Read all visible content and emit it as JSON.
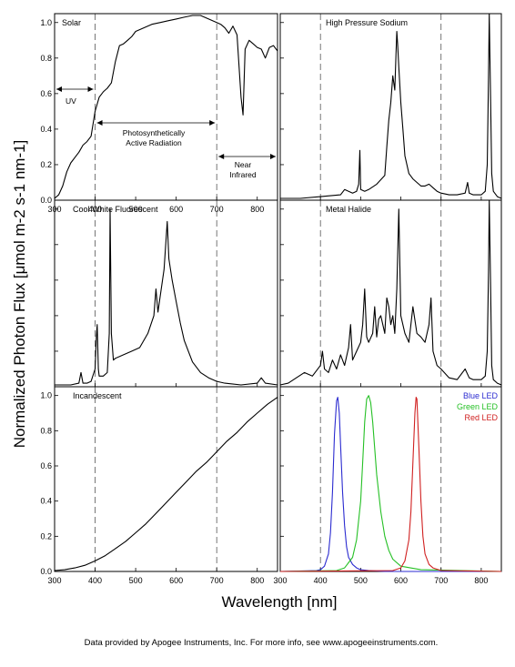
{
  "figure": {
    "xlabel": "Wavelength [nm]",
    "ylabel": "Normalized Photon Flux [μmol m-2 s-1 nm-1]",
    "credit": "Data provided by Apogee Instruments, Inc.  For more info, see www.apogeeinstruments.com."
  },
  "annotations": {
    "uv": "UV",
    "par_line1": "Photosynthetically",
    "par_line2": "Active Radiation",
    "nir_line1": "Near",
    "nir_line2": "Infrared"
  },
  "chart_data": [
    {
      "type": "line",
      "title": "Solar",
      "xlim": [
        300,
        850
      ],
      "ylim": [
        0,
        1.05
      ],
      "xticks": [
        "300",
        "400",
        "500",
        "600",
        "700",
        "800"
      ],
      "yticks": [
        "0.0",
        "0.2",
        "0.4",
        "0.6",
        "0.8",
        "1.0"
      ],
      "reference_lines_x": [
        400,
        700
      ],
      "series": [
        {
          "color": "#000000",
          "x": [
            300,
            310,
            320,
            330,
            340,
            350,
            360,
            370,
            380,
            390,
            400,
            410,
            420,
            430,
            440,
            450,
            460,
            470,
            480,
            490,
            500,
            520,
            540,
            560,
            580,
            600,
            620,
            640,
            660,
            680,
            700,
            710,
            720,
            730,
            740,
            750,
            760,
            765,
            770,
            780,
            790,
            800,
            810,
            820,
            830,
            840,
            850
          ],
          "y": [
            0.01,
            0.03,
            0.08,
            0.16,
            0.21,
            0.24,
            0.27,
            0.31,
            0.33,
            0.36,
            0.5,
            0.58,
            0.61,
            0.63,
            0.66,
            0.78,
            0.87,
            0.88,
            0.9,
            0.92,
            0.95,
            0.97,
            0.99,
            1.0,
            1.01,
            1.02,
            1.03,
            1.04,
            1.04,
            1.02,
            1.0,
            0.99,
            0.97,
            0.94,
            0.98,
            0.93,
            0.58,
            0.48,
            0.85,
            0.9,
            0.88,
            0.86,
            0.85,
            0.8,
            0.86,
            0.87,
            0.84
          ]
        }
      ]
    },
    {
      "type": "line",
      "title": "High Pressure Sodium",
      "xlim": [
        300,
        850
      ],
      "ylim": [
        0,
        1.05
      ],
      "xticks": [],
      "yticks": [],
      "reference_lines_x": [
        400,
        700
      ],
      "series": [
        {
          "color": "#000000",
          "x": [
            300,
            350,
            400,
            450,
            460,
            470,
            480,
            490,
            495,
            498,
            500,
            510,
            520,
            540,
            560,
            565,
            570,
            575,
            580,
            585,
            588,
            590,
            592,
            595,
            600,
            605,
            610,
            620,
            630,
            640,
            650,
            660,
            670,
            680,
            690,
            700,
            720,
            740,
            760,
            766,
            770,
            780,
            800,
            810,
            815,
            818,
            820,
            823,
            826,
            830,
            840,
            850
          ],
          "y": [
            0.01,
            0.01,
            0.02,
            0.03,
            0.06,
            0.05,
            0.04,
            0.05,
            0.09,
            0.28,
            0.06,
            0.05,
            0.06,
            0.09,
            0.14,
            0.3,
            0.45,
            0.55,
            0.7,
            0.62,
            0.82,
            0.95,
            0.88,
            0.75,
            0.55,
            0.4,
            0.25,
            0.15,
            0.12,
            0.1,
            0.08,
            0.08,
            0.09,
            0.07,
            0.05,
            0.04,
            0.03,
            0.03,
            0.04,
            0.1,
            0.04,
            0.03,
            0.03,
            0.05,
            0.2,
            0.7,
            1.05,
            0.6,
            0.15,
            0.05,
            0.02,
            0.01
          ]
        }
      ]
    },
    {
      "type": "line",
      "title": "Cool White Fluorescent",
      "xlim": [
        300,
        850
      ],
      "ylim": [
        0,
        1.05
      ],
      "xticks": [],
      "yticks": [],
      "reference_lines_x": [
        400,
        700
      ],
      "series": [
        {
          "color": "#000000",
          "x": [
            300,
            340,
            360,
            365,
            370,
            380,
            390,
            400,
            403,
            405,
            408,
            410,
            420,
            430,
            435,
            437,
            440,
            445,
            450,
            470,
            490,
            510,
            530,
            545,
            550,
            555,
            560,
            570,
            578,
            582,
            590,
            600,
            610,
            620,
            640,
            660,
            680,
            700,
            720,
            760,
            800,
            810,
            820,
            850
          ],
          "y": [
            0.01,
            0.01,
            0.02,
            0.08,
            0.02,
            0.02,
            0.03,
            0.1,
            0.28,
            0.35,
            0.1,
            0.06,
            0.06,
            0.08,
            0.3,
            1.0,
            0.3,
            0.15,
            0.16,
            0.18,
            0.2,
            0.22,
            0.3,
            0.4,
            0.55,
            0.42,
            0.5,
            0.66,
            0.93,
            0.72,
            0.6,
            0.48,
            0.36,
            0.26,
            0.14,
            0.08,
            0.05,
            0.03,
            0.02,
            0.01,
            0.02,
            0.05,
            0.02,
            0.01
          ]
        }
      ]
    },
    {
      "type": "line",
      "title": "Metal Halide",
      "xlim": [
        300,
        850
      ],
      "ylim": [
        0,
        1.05
      ],
      "xticks": [],
      "yticks": [],
      "reference_lines_x": [
        400,
        700
      ],
      "series": [
        {
          "color": "#000000",
          "x": [
            300,
            320,
            340,
            360,
            380,
            400,
            405,
            410,
            420,
            430,
            440,
            450,
            460,
            470,
            475,
            480,
            490,
            500,
            505,
            510,
            515,
            520,
            530,
            535,
            540,
            545,
            550,
            560,
            565,
            570,
            575,
            580,
            585,
            590,
            595,
            600,
            610,
            620,
            630,
            640,
            650,
            660,
            670,
            675,
            680,
            690,
            700,
            720,
            740,
            760,
            770,
            780,
            800,
            810,
            815,
            818,
            820,
            823,
            826,
            830,
            840,
            850
          ],
          "y": [
            0.01,
            0.02,
            0.05,
            0.08,
            0.06,
            0.12,
            0.2,
            0.1,
            0.08,
            0.15,
            0.1,
            0.18,
            0.12,
            0.22,
            0.35,
            0.15,
            0.2,
            0.25,
            0.35,
            0.55,
            0.28,
            0.25,
            0.3,
            0.45,
            0.28,
            0.38,
            0.4,
            0.3,
            0.5,
            0.45,
            0.35,
            0.4,
            0.3,
            0.55,
            1.0,
            0.4,
            0.3,
            0.25,
            0.45,
            0.3,
            0.28,
            0.25,
            0.35,
            0.5,
            0.2,
            0.12,
            0.1,
            0.05,
            0.04,
            0.1,
            0.05,
            0.04,
            0.04,
            0.06,
            0.2,
            0.65,
            1.05,
            0.6,
            0.12,
            0.04,
            0.02,
            0.01
          ]
        }
      ]
    },
    {
      "type": "line",
      "title": "Incandescent",
      "xlim": [
        300,
        850
      ],
      "ylim": [
        0,
        1.05
      ],
      "xticks": [
        "300",
        "400",
        "500",
        "600",
        "700",
        "800"
      ],
      "yticks": [
        "0.0",
        "0.2",
        "0.4",
        "0.6",
        "0.8",
        "1.0"
      ],
      "reference_lines_x": [
        400,
        700
      ],
      "series": [
        {
          "color": "#000000",
          "x": [
            300,
            325,
            350,
            375,
            400,
            425,
            450,
            475,
            500,
            525,
            550,
            575,
            600,
            625,
            650,
            675,
            700,
            725,
            750,
            775,
            800,
            825,
            850
          ],
          "y": [
            0.005,
            0.01,
            0.02,
            0.035,
            0.06,
            0.09,
            0.13,
            0.17,
            0.22,
            0.27,
            0.33,
            0.39,
            0.45,
            0.51,
            0.57,
            0.62,
            0.68,
            0.74,
            0.79,
            0.85,
            0.9,
            0.95,
            0.99
          ]
        }
      ]
    },
    {
      "type": "line",
      "title": "",
      "xlim": [
        300,
        850
      ],
      "ylim": [
        0,
        1.05
      ],
      "xticks": [
        "300",
        "400",
        "500",
        "600",
        "700",
        "800"
      ],
      "yticks": [],
      "reference_lines_x": [
        400,
        700
      ],
      "legend_position": "top-right",
      "series": [
        {
          "name": "Blue LED",
          "color": "#2b2bd0",
          "x": [
            300,
            390,
            400,
            410,
            420,
            425,
            430,
            435,
            440,
            443,
            447,
            450,
            455,
            460,
            465,
            470,
            480,
            490,
            500,
            520,
            560,
            850
          ],
          "y": [
            0,
            0.005,
            0.01,
            0.03,
            0.1,
            0.22,
            0.45,
            0.78,
            0.97,
            0.99,
            0.9,
            0.72,
            0.45,
            0.26,
            0.14,
            0.08,
            0.04,
            0.02,
            0.01,
            0.005,
            0,
            0
          ]
        },
        {
          "name": "Green LED",
          "color": "#25c025",
          "x": [
            300,
            440,
            460,
            480,
            490,
            500,
            505,
            510,
            515,
            520,
            525,
            530,
            535,
            540,
            550,
            560,
            570,
            580,
            600,
            650,
            850
          ],
          "y": [
            0,
            0.005,
            0.02,
            0.08,
            0.18,
            0.4,
            0.62,
            0.85,
            0.98,
            1.0,
            0.96,
            0.85,
            0.7,
            0.55,
            0.34,
            0.2,
            0.12,
            0.07,
            0.03,
            0.01,
            0
          ]
        },
        {
          "name": "Red LED",
          "color": "#d02020",
          "x": [
            300,
            580,
            600,
            610,
            620,
            625,
            630,
            635,
            638,
            640,
            645,
            650,
            655,
            660,
            670,
            680,
            700,
            850
          ],
          "y": [
            0,
            0.005,
            0.02,
            0.06,
            0.18,
            0.34,
            0.62,
            0.9,
            0.99,
            0.98,
            0.7,
            0.4,
            0.2,
            0.1,
            0.04,
            0.02,
            0.005,
            0
          ]
        }
      ]
    }
  ]
}
